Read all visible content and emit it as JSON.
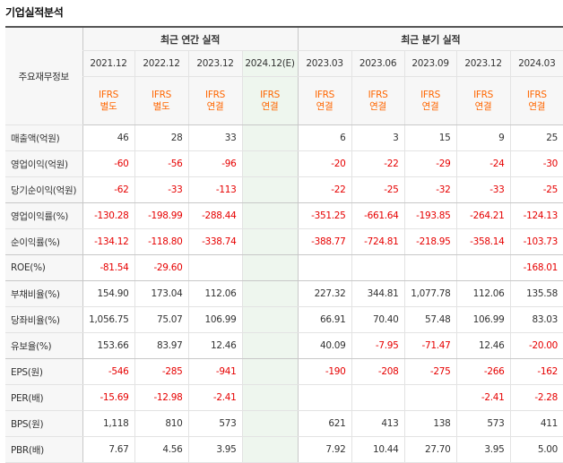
{
  "title": "기업실적분석",
  "header": {
    "corner_label": "주요재무정보",
    "annual_group": "최근 연간 실적",
    "quarter_group": "최근 분기 실적",
    "annual_dates": [
      "2021.12",
      "2022.12",
      "2023.12",
      "2024.12(E)"
    ],
    "quarter_dates": [
      "2023.03",
      "2023.06",
      "2023.09",
      "2023.12",
      "2024.03"
    ],
    "ifrs": [
      {
        "top": "IFRS",
        "bottom": "별도"
      },
      {
        "top": "IFRS",
        "bottom": "별도"
      },
      {
        "top": "IFRS",
        "bottom": "연결"
      },
      {
        "top": "IFRS",
        "bottom": "연결"
      },
      {
        "top": "IFRS",
        "bottom": "연결"
      },
      {
        "top": "IFRS",
        "bottom": "연결"
      },
      {
        "top": "IFRS",
        "bottom": "연결"
      },
      {
        "top": "IFRS",
        "bottom": "연결"
      },
      {
        "top": "IFRS",
        "bottom": "연결"
      }
    ]
  },
  "rows": [
    {
      "label": "매출액(억원)",
      "values": [
        "46",
        "28",
        "33",
        "",
        "6",
        "3",
        "15",
        "9",
        "25"
      ]
    },
    {
      "label": "영업이익(억원)",
      "values": [
        "-60",
        "-56",
        "-96",
        "",
        "-20",
        "-22",
        "-29",
        "-24",
        "-30"
      ]
    },
    {
      "label": "당기순이익(억원)",
      "values": [
        "-62",
        "-33",
        "-113",
        "",
        "-22",
        "-25",
        "-32",
        "-33",
        "-25"
      ]
    },
    {
      "label": "영업이익률(%)",
      "values": [
        "-130.28",
        "-198.99",
        "-288.44",
        "",
        "-351.25",
        "-661.64",
        "-193.85",
        "-264.21",
        "-124.13"
      ]
    },
    {
      "label": "순이익률(%)",
      "values": [
        "-134.12",
        "-118.80",
        "-338.74",
        "",
        "-388.77",
        "-724.81",
        "-218.95",
        "-358.14",
        "-103.73"
      ]
    },
    {
      "label": "ROE(%)",
      "values": [
        "-81.54",
        "-29.60",
        "",
        "",
        "",
        "",
        "",
        "",
        "-168.01"
      ]
    },
    {
      "label": "부채비율(%)",
      "values": [
        "154.90",
        "173.04",
        "112.06",
        "",
        "227.32",
        "344.81",
        "1,077.78",
        "112.06",
        "135.58"
      ]
    },
    {
      "label": "당좌비율(%)",
      "values": [
        "1,056.75",
        "75.07",
        "106.99",
        "",
        "66.91",
        "70.40",
        "57.48",
        "106.99",
        "83.03"
      ]
    },
    {
      "label": "유보율(%)",
      "values": [
        "153.66",
        "83.97",
        "12.46",
        "",
        "40.09",
        "-7.95",
        "-71.47",
        "12.46",
        "-20.00"
      ]
    },
    {
      "label": "EPS(원)",
      "values": [
        "-546",
        "-285",
        "-941",
        "",
        "-190",
        "-208",
        "-275",
        "-266",
        "-162"
      ]
    },
    {
      "label": "PER(배)",
      "values": [
        "-15.69",
        "-12.98",
        "-2.41",
        "",
        "",
        "",
        "",
        "-2.41",
        "-2.28"
      ]
    },
    {
      "label": "BPS(원)",
      "values": [
        "1,118",
        "810",
        "573",
        "",
        "621",
        "413",
        "138",
        "573",
        "411"
      ]
    },
    {
      "label": "PBR(배)",
      "values": [
        "7.67",
        "4.56",
        "3.95",
        "",
        "7.92",
        "10.44",
        "27.70",
        "3.95",
        "5.00"
      ]
    }
  ],
  "colors": {
    "negative": "#e60000",
    "ifrs": "#ff6600",
    "estimate_bg": "#eef6ee"
  }
}
